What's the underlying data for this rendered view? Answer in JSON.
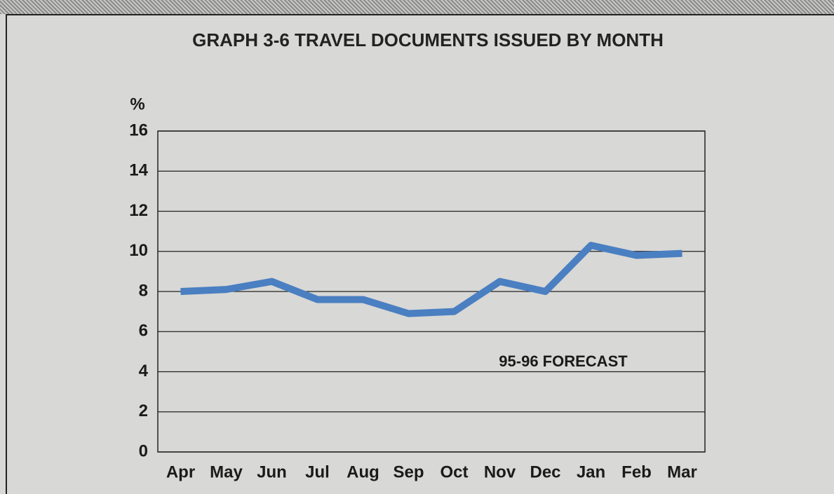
{
  "chart_data": {
    "type": "line",
    "title": "GRAPH 3-6  TRAVEL DOCUMENTS ISSUED BY MONTH",
    "ylabel": "%",
    "annotation": "95-96 FORECAST",
    "categories": [
      "Apr",
      "May",
      "Jun",
      "Jul",
      "Aug",
      "Sep",
      "Oct",
      "Nov",
      "Dec",
      "Jan",
      "Feb",
      "Mar"
    ],
    "values": [
      8.0,
      8.1,
      8.5,
      7.6,
      7.6,
      6.9,
      7.0,
      8.5,
      8.0,
      10.3,
      9.8,
      9.9
    ],
    "color": "#4a7fc1",
    "ylim": [
      0,
      16
    ],
    "yticks": [
      0,
      2,
      4,
      6,
      8,
      10,
      12,
      14,
      16
    ],
    "grid": true
  }
}
